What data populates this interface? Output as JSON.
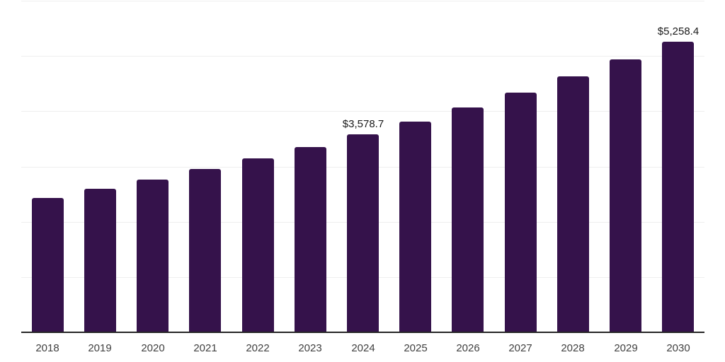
{
  "chart_data": {
    "type": "bar",
    "title": "",
    "xlabel": "",
    "ylabel": "",
    "categories": [
      "2018",
      "2019",
      "2020",
      "2021",
      "2022",
      "2023",
      "2024",
      "2025",
      "2026",
      "2027",
      "2028",
      "2029",
      "2030"
    ],
    "values": [
      2435.4,
      2596.8,
      2768.8,
      2952.2,
      3147.8,
      3356.3,
      3578.7,
      3815.8,
      4068.6,
      4338.2,
      4625.6,
      4932.1,
      5258.4
    ],
    "data_labels": {
      "2024": "$3,578.7",
      "2030": "$5,258.4"
    },
    "ylim": [
      0,
      6000
    ],
    "gridline_step": 1000,
    "grid": true,
    "legend": false
  },
  "colors": {
    "bar": "#35124B",
    "grid": "#efefef",
    "axis": "#262626",
    "data_label": "#1a1a1a",
    "tick_label": "#404040",
    "background": "#ffffff"
  }
}
